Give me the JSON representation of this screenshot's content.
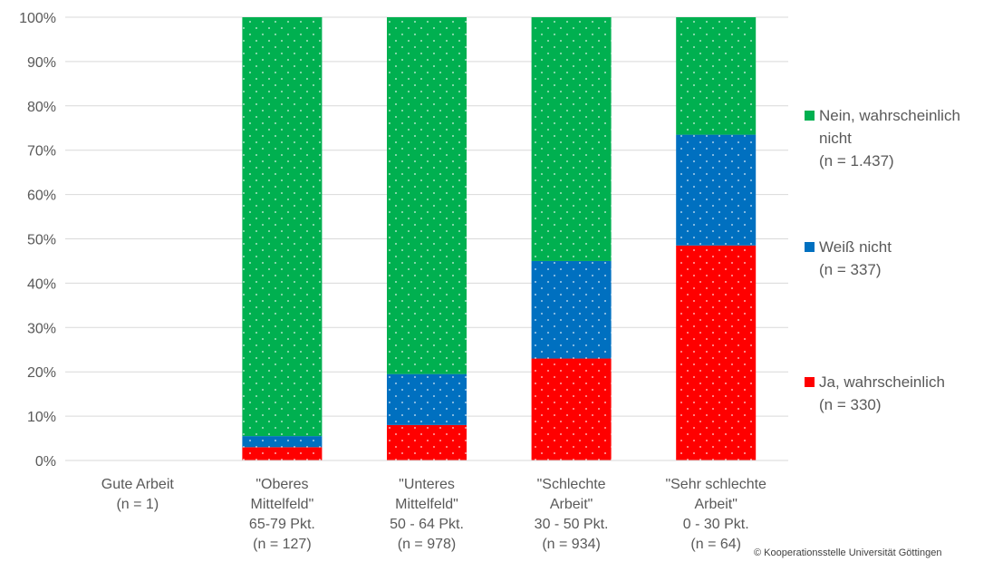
{
  "chart_data": {
    "type": "bar",
    "stacked": true,
    "normalized": true,
    "categories": [
      [
        "Gute Arbeit",
        "(n = 1)"
      ],
      [
        "\"Oberes",
        "Mittelfeld\"",
        "65-79 Pkt.",
        "(n = 127)"
      ],
      [
        "\"Unteres",
        "Mittelfeld\"",
        "50 - 64 Pkt.",
        "(n = 978)"
      ],
      [
        "\"Schlechte",
        "Arbeit\"",
        "30 - 50 Pkt.",
        "(n = 934)"
      ],
      [
        "\"Sehr schlechte",
        "Arbeit\"",
        "0 - 30 Pkt.",
        "(n = 64)"
      ]
    ],
    "series": [
      {
        "name": "Ja, wahrscheinlich\n(n = 330)",
        "color": "#ff0000",
        "values": [
          0,
          3,
          8,
          23,
          48.5
        ]
      },
      {
        "name": "Weiß nicht\n(n = 337)",
        "color": "#0070c0",
        "values": [
          0,
          2.5,
          11.5,
          22,
          25
        ]
      },
      {
        "name": "Nein, wahrscheinlich\nnicht\n(n = 1.437)",
        "color": "#00b050",
        "values": [
          0,
          94.5,
          80.5,
          55,
          26.5
        ]
      }
    ],
    "yticks": [
      "0%",
      "10%",
      "20%",
      "30%",
      "40%",
      "50%",
      "60%",
      "70%",
      "80%",
      "90%",
      "100%"
    ],
    "ylim": [
      0,
      100
    ],
    "grid": true,
    "legend_position": "right",
    "title": "",
    "xlabel": "",
    "ylabel": ""
  },
  "legend": [
    {
      "label": "Nein, wahrscheinlich\nnicht\n(n = 1.437)",
      "color": "#00b050"
    },
    {
      "label": "Weiß nicht\n(n = 337)",
      "color": "#0070c0"
    },
    {
      "label": "Ja, wahrscheinlich\n(n = 330)",
      "color": "#ff0000"
    }
  ],
  "copyright": "© Kooperationsstelle Universität Göttingen"
}
